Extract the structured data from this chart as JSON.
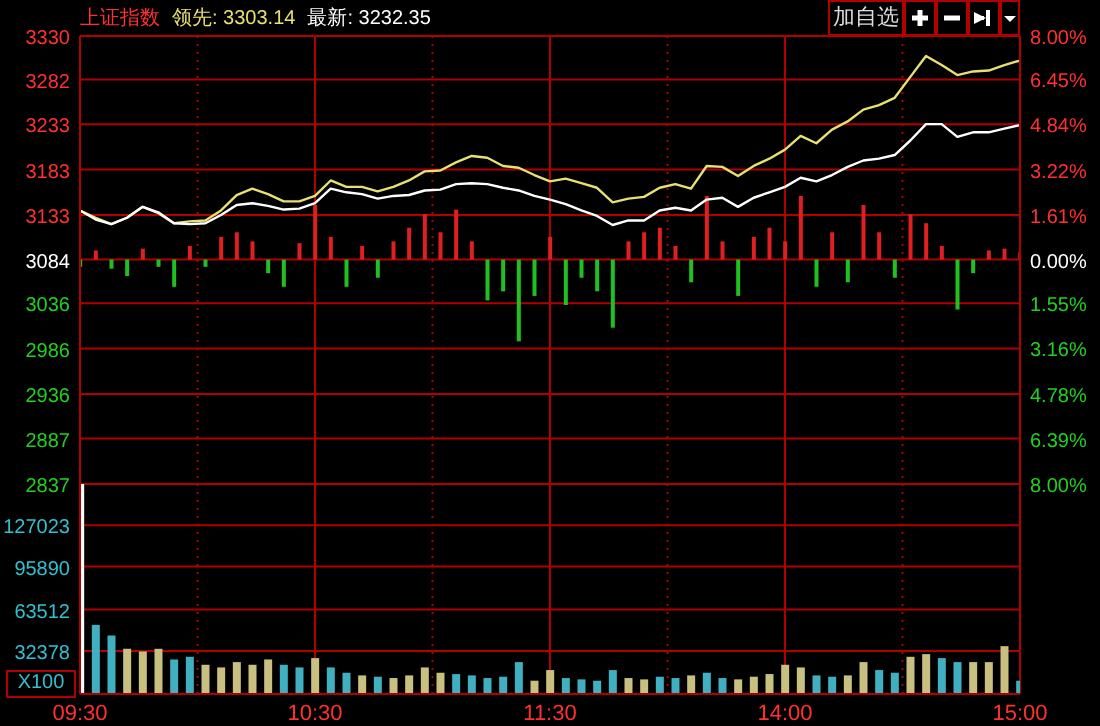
{
  "chart_data": [
    {
      "type": "line",
      "title": "上证指数",
      "annotations": [
        "领先: 3303.14",
        "最新: 3232.35",
        "加自选"
      ],
      "categories": [
        null,
        null,
        null,
        null,
        null,
        null,
        null,
        null,
        null,
        null,
        null,
        null,
        null,
        null,
        null,
        null,
        null,
        null,
        null,
        null,
        null,
        null,
        null,
        null,
        null,
        null,
        null,
        null,
        null,
        null,
        null,
        null,
        null,
        null,
        null,
        null,
        null,
        null,
        null,
        null,
        null,
        null,
        null,
        null,
        null,
        null,
        null,
        null,
        null,
        null,
        null,
        null,
        null,
        null,
        null,
        null,
        null,
        null,
        null,
        null,
        null
      ],
      "ylim": [
        2837,
        3330
      ],
      "yticks": [
        3330,
        3282,
        3233,
        3183,
        3133,
        3084,
        3036,
        2986,
        2936,
        2887,
        2837
      ],
      "y2lim": [
        -8,
        8
      ],
      "y2ticks": [
        {
          "value": 8,
          "label": "8.00%"
        },
        {
          "value": 6.45,
          "label": "6.45%"
        },
        {
          "value": 4.84,
          "label": "4.84%"
        },
        {
          "value": 3.22,
          "label": "3.22%"
        },
        {
          "value": 1.61,
          "label": "1.61%"
        },
        {
          "value": 0,
          "label": "0.00%"
        },
        {
          "value": -1.55,
          "label": "1.55%"
        },
        {
          "value": -3.16,
          "label": "3.16%"
        },
        {
          "value": -4.78,
          "label": "4.78%"
        },
        {
          "value": -6.39,
          "label": "6.39%"
        },
        {
          "value": -8,
          "label": "8.00%"
        }
      ],
      "tick_labels": "y",
      "grid": true,
      "marker": "none",
      "series": [
        {
          "type": "bar",
          "base": [
            3084,
            3084,
            3084,
            3084,
            3084,
            3084,
            3084,
            3084,
            3084,
            3084,
            3084,
            3084,
            3084,
            3084,
            3084,
            3084,
            3084,
            3084,
            3084,
            3084,
            3084,
            3084,
            3084,
            3084,
            3084,
            3084,
            3084,
            3084,
            3084,
            3084,
            3084,
            3084,
            3084,
            3084,
            3084,
            3084,
            3084,
            3084,
            3084,
            3084,
            3084,
            3084,
            3084,
            3084,
            3084,
            3084,
            3084,
            3084,
            3084,
            3084,
            3084,
            3084,
            3084,
            3084,
            3084,
            3084,
            3084,
            3084,
            3084,
            3084,
            3084
          ],
          "values": [
            -8,
            10,
            -10,
            -18,
            12,
            -8,
            -30,
            15,
            -8,
            25,
            30,
            20,
            -15,
            -30,
            18,
            60,
            25,
            -30,
            15,
            -20,
            20,
            35,
            50,
            30,
            55,
            20,
            -45,
            -35,
            -90,
            -40,
            25,
            -50,
            -20,
            -35,
            -75,
            20,
            30,
            35,
            15,
            -25,
            70,
            20,
            -40,
            25,
            35,
            20,
            70,
            -30,
            30,
            -25,
            60,
            30,
            -20,
            50,
            40,
            15,
            -55,
            -15,
            10,
            12,
            8
          ],
          "colors": [
            "#20c020",
            "#e02020",
            "#20c020",
            "#20c020",
            "#e02020",
            "#20c020",
            "#20c020",
            "#e02020",
            "#20c020",
            "#e02020",
            "#e02020",
            "#e02020",
            "#20c020",
            "#20c020",
            "#e02020",
            "#e02020",
            "#e02020",
            "#20c020",
            "#e02020",
            "#20c020",
            "#e02020",
            "#e02020",
            "#e02020",
            "#e02020",
            "#e02020",
            "#e02020",
            "#20c020",
            "#20c020",
            "#20c020",
            "#20c020",
            "#e02020",
            "#20c020",
            "#20c020",
            "#20c020",
            "#20c020",
            "#e02020",
            "#e02020",
            "#e02020",
            "#e02020",
            "#20c020",
            "#e02020",
            "#e02020",
            "#20c020",
            "#e02020",
            "#e02020",
            "#e02020",
            "#e02020",
            "#20c020",
            "#e02020",
            "#20c020",
            "#e02020",
            "#e02020",
            "#20c020",
            "#e02020",
            "#e02020",
            "#e02020",
            "#20c020",
            "#20c020",
            "#e02020",
            "#e02020",
            "#e02020"
          ]
        },
        {
          "color": "#e8e070",
          "values": [
            3138,
            3130,
            3123,
            3130,
            3142,
            3135,
            3124,
            3126,
            3127,
            3138,
            3155,
            3162,
            3156,
            3148,
            3148,
            3154,
            3171,
            3164,
            3164,
            3159,
            3164,
            3171,
            3181,
            3182,
            3191,
            3198,
            3196,
            3187,
            3185,
            3177,
            3170,
            3173,
            3168,
            3163,
            3147,
            3151,
            3153,
            3163,
            3167,
            3162,
            3187,
            3186,
            3176,
            3187,
            3195,
            3205,
            3220,
            3212,
            3227,
            3236,
            3249,
            3254,
            3262,
            3285,
            3308,
            3298,
            3287,
            3291,
            3292,
            3298,
            3303
          ]
        },
        {
          "color": "#ffffff",
          "values": [
            3138,
            3128,
            3123,
            3130,
            3142,
            3136,
            3124,
            3123,
            3124,
            3133,
            3144,
            3146,
            3143,
            3139,
            3140,
            3146,
            3162,
            3158,
            3156,
            3151,
            3154,
            3155,
            3160,
            3161,
            3167,
            3168,
            3167,
            3163,
            3160,
            3154,
            3150,
            3145,
            3138,
            3132,
            3122,
            3127,
            3127,
            3138,
            3141,
            3138,
            3150,
            3152,
            3142,
            3152,
            3158,
            3164,
            3174,
            3170,
            3177,
            3186,
            3193,
            3195,
            3199,
            3215,
            3233,
            3233,
            3219,
            3224,
            3224,
            3228,
            3232
          ]
        }
      ]
    },
    {
      "type": "bar",
      "ylabel": "X100",
      "grid": true,
      "categories": [
        "09:30",
        null,
        null,
        null,
        null,
        null,
        null,
        null,
        null,
        null,
        null,
        null,
        null,
        null,
        null,
        "10:30",
        null,
        null,
        null,
        null,
        null,
        null,
        null,
        null,
        null,
        null,
        null,
        null,
        null,
        null,
        "11:30",
        null,
        null,
        null,
        null,
        null,
        null,
        null,
        null,
        null,
        null,
        null,
        null,
        null,
        null,
        "14:00",
        null,
        null,
        null,
        null,
        null,
        null,
        null,
        null,
        null,
        null,
        null,
        null,
        null,
        null,
        "15:00"
      ],
      "ylim": [
        0,
        158000
      ],
      "yticks": [
        32378,
        63512,
        95890,
        127023
      ],
      "values": [
        158000,
        52000,
        44000,
        34000,
        32000,
        34000,
        26000,
        28000,
        22000,
        20000,
        24000,
        22000,
        26000,
        22000,
        20000,
        27000,
        20000,
        16000,
        14000,
        13000,
        12000,
        14000,
        20000,
        16000,
        15000,
        14000,
        12000,
        13000,
        24000,
        10000,
        18000,
        12000,
        11000,
        10000,
        18000,
        12000,
        11000,
        13000,
        12000,
        14000,
        16000,
        12000,
        11000,
        13000,
        15000,
        22000,
        20000,
        14000,
        13000,
        14000,
        24000,
        18000,
        16000,
        28000,
        30000,
        27000,
        24000,
        24000,
        24000,
        36000,
        10000
      ],
      "colors": [
        "#ffffff",
        "#40b0c0",
        "#40b0c0",
        "#c8c080",
        "#c8c080",
        "#c8c080",
        "#40b0c0",
        "#40b0c0",
        "#c8c080",
        "#c8c080",
        "#c8c080",
        "#c8c080",
        "#c8c080",
        "#40b0c0",
        "#40b0c0",
        "#c8c080",
        "#40b0c0",
        "#40b0c0",
        "#c8c080",
        "#40b0c0",
        "#c8c080",
        "#c8c080",
        "#c8c080",
        "#c8c080",
        "#40b0c0",
        "#40b0c0",
        "#40b0c0",
        "#40b0c0",
        "#40b0c0",
        "#c8c080",
        "#c8c080",
        "#40b0c0",
        "#40b0c0",
        "#40b0c0",
        "#40b0c0",
        "#c8c080",
        "#c8c080",
        "#40b0c0",
        "#40b0c0",
        "#c8c080",
        "#40b0c0",
        "#40b0c0",
        "#c8c080",
        "#c8c080",
        "#c8c080",
        "#c8c080",
        "#c8c080",
        "#40b0c0",
        "#40b0c0",
        "#c8c080",
        "#c8c080",
        "#40b0c0",
        "#40b0c0",
        "#c8c080",
        "#c8c080",
        "#40b0c0",
        "#40b0c0",
        "#c8c080",
        "#c8c080",
        "#c8c080",
        "#40b0c0"
      ]
    }
  ]
}
